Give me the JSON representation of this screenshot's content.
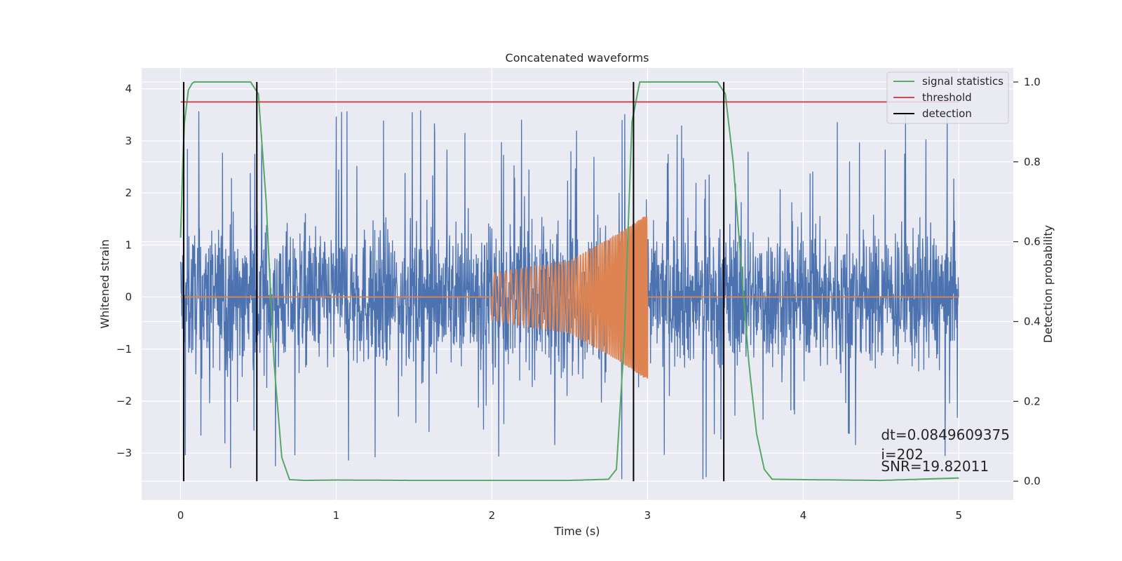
{
  "chart_data": {
    "type": "line",
    "title": "Concatenated waveforms",
    "xlabel": "Time (s)",
    "ylabel": "Whitened strain",
    "y2label": "Detection probability",
    "xlim": [
      -0.25,
      5.35
    ],
    "ylim": [
      -3.9,
      4.4
    ],
    "y2lim": [
      -0.047,
      1.035
    ],
    "x_ticks": [
      0,
      1,
      2,
      3,
      4,
      5
    ],
    "y_ticks": [
      -3,
      -2,
      -1,
      0,
      1,
      2,
      3,
      4
    ],
    "y2_ticks": [
      0.0,
      0.2,
      0.4,
      0.6,
      0.8,
      1.0
    ],
    "x_tick_labels": [
      "0",
      "1",
      "2",
      "3",
      "4",
      "5"
    ],
    "y_tick_labels": [
      "−3",
      "−2",
      "−1",
      "0",
      "1",
      "2",
      "3",
      "4"
    ],
    "y2_tick_labels": [
      "0.0",
      "0.2",
      "0.4",
      "0.6",
      "0.8",
      "1.0"
    ],
    "grid": true,
    "legend_position": "top-right",
    "series": [
      {
        "name": "",
        "axis": "left",
        "color": "#4c72b0",
        "kind": "noise",
        "x_range": [
          0,
          5
        ],
        "typical_range": [
          -1.9,
          2.0
        ],
        "extreme_range": [
          -3.5,
          4.0
        ]
      },
      {
        "name": "",
        "axis": "left",
        "color": "#dd8452",
        "kind": "chirp",
        "x": [
          0,
          2,
          2.5,
          2.8,
          3,
          5
        ],
        "amplitude": [
          0,
          0.45,
          0.7,
          1.2,
          1.6,
          0
        ],
        "note_range": [
          2,
          3
        ]
      },
      {
        "name": "signal statistics",
        "axis": "right",
        "color": "#55a868",
        "x": [
          0,
          0.02,
          0.05,
          0.08,
          0.15,
          0.3,
          0.45,
          0.5,
          0.55,
          0.6,
          0.65,
          0.7,
          0.8,
          1.0,
          1.5,
          2.0,
          2.5,
          2.75,
          2.8,
          2.85,
          2.9,
          2.95,
          3.0,
          3.2,
          3.4,
          3.45,
          3.5,
          3.55,
          3.6,
          3.65,
          3.7,
          3.75,
          3.8,
          4.0,
          4.5,
          5.0
        ],
        "values": [
          0.61,
          0.88,
          0.98,
          1.0,
          1.0,
          1.0,
          1.0,
          0.97,
          0.7,
          0.3,
          0.06,
          0.004,
          0.002,
          0.003,
          0.002,
          0.002,
          0.002,
          0.005,
          0.03,
          0.35,
          0.9,
          1.0,
          1.0,
          1.0,
          1.0,
          1.0,
          0.97,
          0.8,
          0.55,
          0.3,
          0.12,
          0.03,
          0.005,
          0.004,
          0.002,
          0.008
        ]
      },
      {
        "name": "threshold",
        "axis": "right",
        "color": "#c44e52",
        "x": [
          0,
          5
        ],
        "values": [
          0.95,
          0.95
        ]
      },
      {
        "name": "detection",
        "axis": "right",
        "color": "#000000",
        "kind": "vlines",
        "x": [
          0.02,
          0.49,
          2.91,
          3.49
        ],
        "y2_range": [
          0.0,
          1.0
        ]
      }
    ],
    "annotations": [
      {
        "text": "dt=0.0849609375",
        "x": 4.5,
        "y": -2.74
      },
      {
        "text": " i=202",
        "x": 4.5,
        "y": -3.12
      },
      {
        "text": "SNR=19.82011",
        "x": 4.5,
        "y": -3.35
      }
    ]
  }
}
